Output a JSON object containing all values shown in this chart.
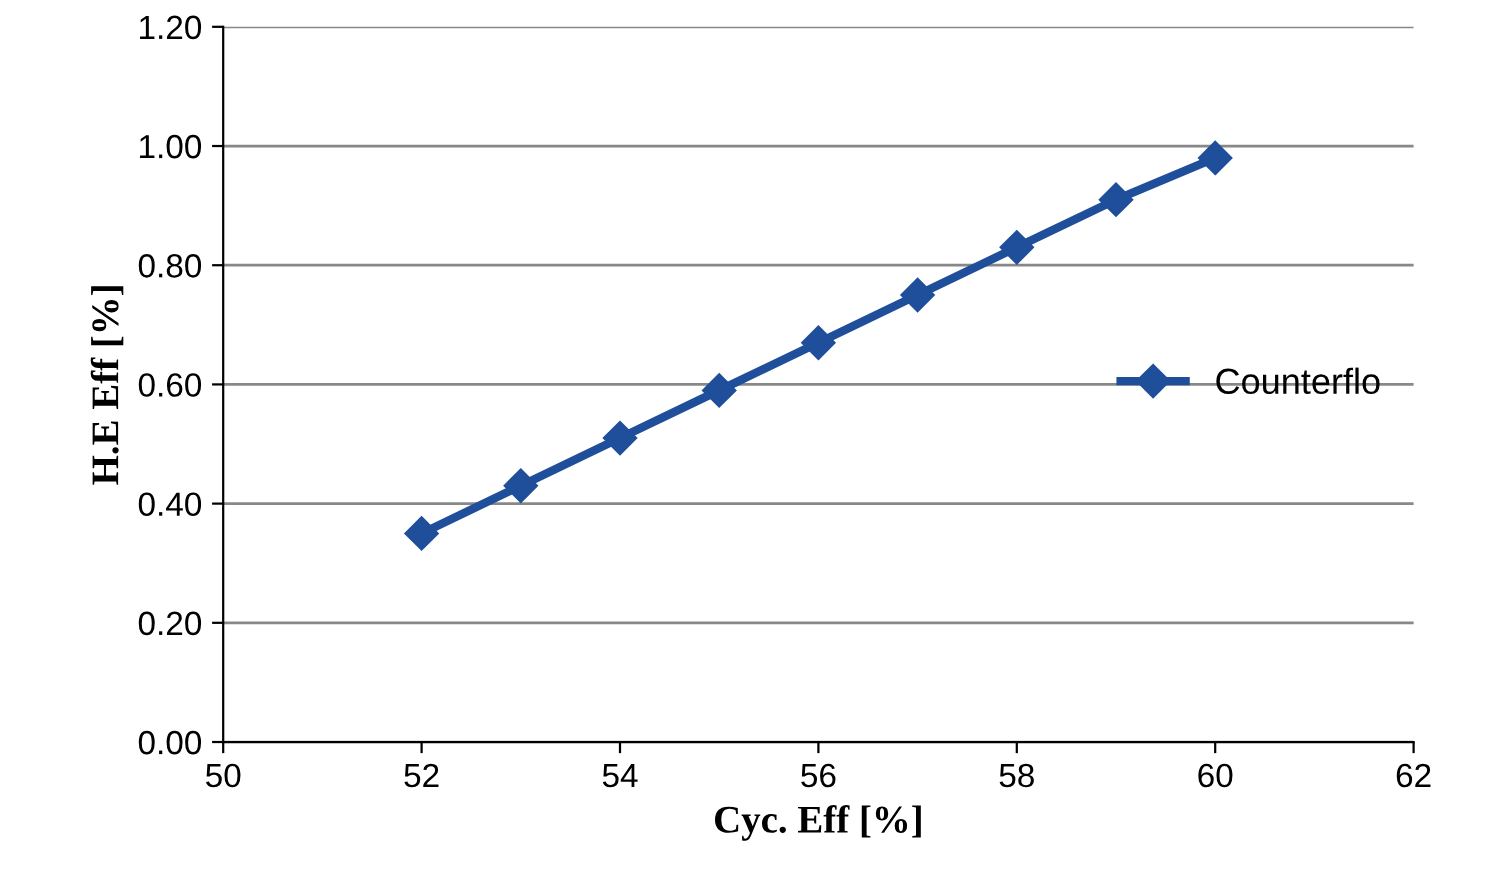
{
  "chart_data": {
    "type": "line",
    "xlabel": "Cyc. Eff [%]",
    "ylabel": "H.E Eff [%]",
    "x": [
      52,
      53,
      54,
      55,
      56,
      57,
      58,
      59,
      60
    ],
    "series": [
      {
        "name": "Counterflo",
        "color": "#1f4e9a",
        "values": [
          0.35,
          0.43,
          0.51,
          0.59,
          0.67,
          0.75,
          0.83,
          0.91,
          0.98
        ]
      }
    ],
    "xlim": [
      50,
      62
    ],
    "xticks": [
      50,
      52,
      54,
      56,
      58,
      60,
      62
    ],
    "ylim": [
      0,
      1.2
    ],
    "yticks": [
      {
        "value": 0,
        "label": "0.00"
      },
      {
        "value": 0.2,
        "label": "0.20"
      },
      {
        "value": 0.4,
        "label": "0.40"
      },
      {
        "value": 0.6,
        "label": "0.60"
      },
      {
        "value": 0.8,
        "label": "0.80"
      },
      {
        "value": 1.0,
        "label": "1.00"
      },
      {
        "value": 1.2,
        "label": "1.20"
      }
    ],
    "grid": "y",
    "legend": "right",
    "marker": "diamond",
    "line_style": "solid"
  }
}
